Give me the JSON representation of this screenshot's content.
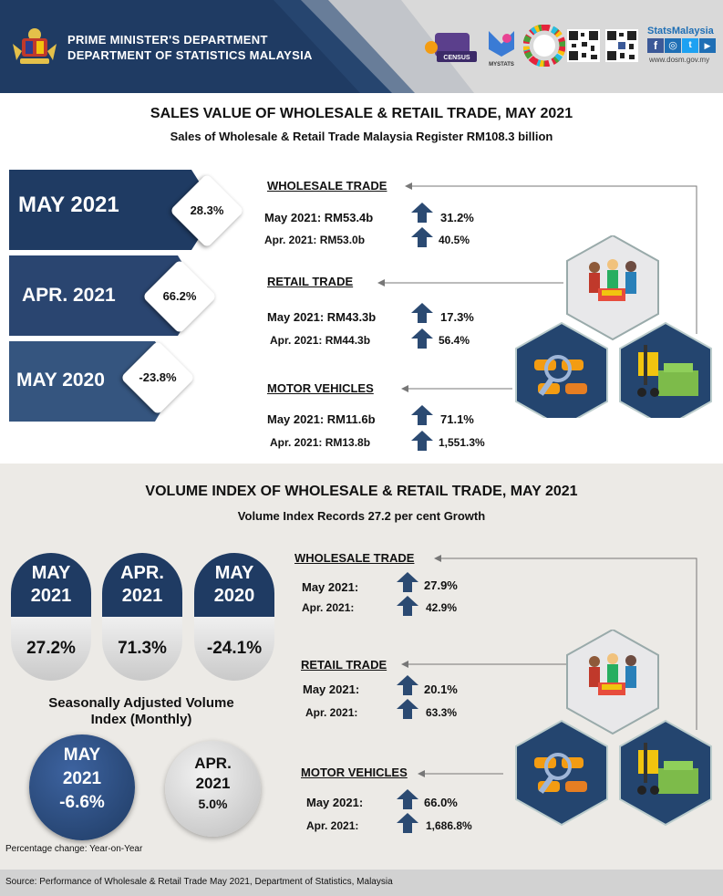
{
  "header": {
    "line1": "PRIME MINISTER'S DEPARTMENT",
    "line2": "DEPARTMENT OF STATISTICS  MALAYSIA",
    "census_logo": "CENSUS",
    "mystats_day": "MYSTATS DAY",
    "stats_brand": "StatsMalaysia",
    "website": "www.dosm.gov.my"
  },
  "sales": {
    "title": "SALES VALUE OF WHOLESALE & RETAIL TRADE, MAY 2021",
    "subtitle": "Sales of Wholesale & Retail Trade Malaysia Register RM108.3 billion",
    "periods": [
      {
        "label": "MAY 2021",
        "pct": "28.3%"
      },
      {
        "label": "APR. 2021",
        "pct": "66.2%"
      },
      {
        "label": "MAY 2020",
        "pct": "-23.8%"
      }
    ],
    "segments": [
      {
        "heading": "WHOLESALE TRADE",
        "rows": [
          {
            "label": "May 2021: RM53.4b",
            "pct": "31.2%"
          },
          {
            "label": "Apr. 2021: RM53.0b",
            "pct": "40.5%"
          }
        ]
      },
      {
        "heading": "RETAIL TRADE",
        "rows": [
          {
            "label": "May 2021: RM43.3b",
            "pct": "17.3%"
          },
          {
            "label": "Apr. 2021: RM44.3b",
            "pct": "56.4%"
          }
        ]
      },
      {
        "heading": "MOTOR VEHICLES",
        "rows": [
          {
            "label": "May 2021: RM11.6b",
            "pct": "71.1%"
          },
          {
            "label": "Apr. 2021: RM13.8b",
            "pct": "1,551.3%"
          }
        ]
      }
    ]
  },
  "volume": {
    "title": "VOLUME INDEX OF WHOLESALE & RETAIL TRADE, MAY 2021",
    "subtitle": "Volume Index Records 27.2 per cent Growth",
    "pills": [
      {
        "month": "MAY",
        "year": "2021",
        "pct": "27.2%"
      },
      {
        "month": "APR.",
        "year": "2021",
        "pct": "71.3%"
      },
      {
        "month": "MAY",
        "year": "2020",
        "pct": "-24.1%"
      }
    ],
    "sa_title_line1": "Seasonally Adjusted Volume",
    "sa_title_line2": "Index (Monthly)",
    "sa": [
      {
        "month": "MAY",
        "year": "2021",
        "pct": "-6.6%"
      },
      {
        "month": "APR.",
        "year": "2021",
        "pct": "5.0%"
      }
    ],
    "segments": [
      {
        "heading": "WHOLESALE TRADE",
        "rows": [
          {
            "label": "May 2021:",
            "pct": "27.9%"
          },
          {
            "label": "Apr. 2021:",
            "pct": "42.9%"
          }
        ]
      },
      {
        "heading": "RETAIL TRADE",
        "rows": [
          {
            "label": "May 2021:",
            "pct": "20.1%"
          },
          {
            "label": "Apr. 2021:",
            "pct": "63.3%"
          }
        ]
      },
      {
        "heading": "MOTOR VEHICLES",
        "rows": [
          {
            "label": "May 2021:",
            "pct": "66.0%"
          },
          {
            "label": "Apr. 2021:",
            "pct": "1,686.8%"
          }
        ]
      }
    ],
    "note": "Percentage  change:  Year-on-Year"
  },
  "source": "Source:  Performance  of  Wholesale  &  Retail Trade  May 2021,  Department  of  Statistics, Malaysia",
  "colors": {
    "navy": "#1f3b63",
    "arrow": "#2b4a72",
    "banner_light": "#35557f"
  }
}
